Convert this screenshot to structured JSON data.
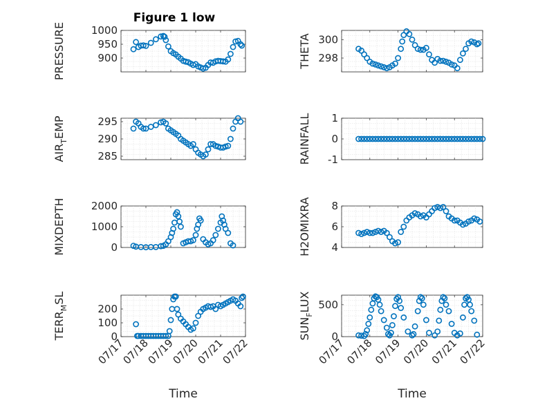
{
  "figure": {
    "title": "Figure 1 low",
    "marker_color": "#0072BD"
  },
  "chart_data": [
    {
      "type": "scatter",
      "ylabel": "PRESSURE",
      "xlabel": "",
      "title": "Figure 1 low",
      "xlim": [
        17,
        22
      ],
      "ylim": [
        850,
        1000
      ],
      "yticks": [
        900,
        950,
        1000
      ],
      "ytick_labels": [
        "900",
        "950",
        "1000"
      ],
      "x": [
        17.5,
        17.6,
        17.7,
        17.8,
        17.9,
        18.0,
        18.2,
        18.4,
        18.6,
        18.7,
        18.75,
        18.8,
        18.9,
        19.0,
        19.1,
        19.2,
        19.3,
        19.4,
        19.5,
        19.6,
        19.7,
        19.8,
        19.9,
        20.0,
        20.1,
        20.2,
        20.3,
        20.4,
        20.5,
        20.6,
        20.7,
        20.8,
        20.9,
        21.0,
        21.1,
        21.2,
        21.3,
        21.4,
        21.5,
        21.6,
        21.7,
        21.8,
        21.85
      ],
      "y": [
        932,
        958,
        940,
        945,
        946,
        944,
        955,
        968,
        978,
        980,
        977,
        965,
        942,
        925,
        918,
        913,
        905,
        898,
        890,
        887,
        885,
        880,
        875,
        878,
        870,
        866,
        862,
        865,
        875,
        884,
        883,
        888,
        890,
        889,
        888,
        887,
        895,
        915,
        940,
        960,
        962,
        950,
        945
      ]
    },
    {
      "type": "scatter",
      "ylabel": "THETA",
      "xlabel": "",
      "xlim": [
        17,
        22
      ],
      "ylim": [
        296.5,
        301
      ],
      "yticks": [
        298,
        300
      ],
      "ytick_labels": [
        "298",
        "300"
      ],
      "x": [
        17.6,
        17.7,
        17.8,
        17.9,
        18.0,
        18.1,
        18.2,
        18.3,
        18.4,
        18.5,
        18.6,
        18.7,
        18.8,
        18.9,
        19.0,
        19.1,
        19.15,
        19.2,
        19.3,
        19.4,
        19.5,
        19.6,
        19.7,
        19.8,
        19.9,
        20.0,
        20.1,
        20.2,
        20.3,
        20.4,
        20.5,
        20.6,
        20.7,
        20.8,
        20.9,
        21.0,
        21.1,
        21.2,
        21.3,
        21.4,
        21.5,
        21.6,
        21.7,
        21.8,
        21.85
      ],
      "y": [
        299.0,
        298.8,
        298.4,
        298.0,
        297.6,
        297.4,
        297.3,
        297.2,
        297.1,
        297.0,
        296.9,
        297.0,
        297.2,
        297.4,
        298.0,
        299.0,
        299.8,
        300.5,
        300.9,
        300.6,
        300.0,
        299.4,
        299.0,
        298.9,
        298.9,
        299.1,
        298.4,
        297.8,
        297.5,
        297.9,
        297.7,
        297.7,
        297.6,
        297.5,
        297.3,
        297.2,
        296.9,
        297.8,
        298.5,
        299.0,
        299.6,
        299.8,
        299.7,
        299.5,
        299.6
      ]
    },
    {
      "type": "scatter",
      "ylabel": "AIR_TEMP",
      "ylabel_main": "AIR",
      "ylabel_sub": "T",
      "ylabel_rest": "EMP",
      "xlabel": "",
      "xlim": [
        17,
        22
      ],
      "ylim": [
        284,
        296
      ],
      "yticks": [
        285,
        290,
        295
      ],
      "ytick_labels": [
        "285",
        "290",
        "295"
      ],
      "x": [
        17.5,
        17.6,
        17.7,
        17.8,
        17.9,
        18.0,
        18.2,
        18.4,
        18.6,
        18.7,
        18.8,
        18.9,
        19.0,
        19.1,
        19.2,
        19.3,
        19.4,
        19.5,
        19.6,
        19.7,
        19.8,
        19.9,
        20.0,
        20.1,
        20.2,
        20.3,
        20.4,
        20.5,
        20.6,
        20.7,
        20.8,
        20.9,
        21.0,
        21.1,
        21.2,
        21.3,
        21.4,
        21.5,
        21.6,
        21.7,
        21.8
      ],
      "y": [
        293,
        295,
        294.5,
        293.5,
        293,
        293,
        293.5,
        294,
        294.8,
        295,
        294.5,
        293,
        292.5,
        292,
        291.5,
        291,
        290,
        289.5,
        289,
        288.5,
        288,
        288.5,
        287,
        286,
        285.5,
        285,
        285.5,
        287,
        288.5,
        288.5,
        288,
        287.8,
        287.5,
        287.5,
        287.8,
        288,
        290,
        293,
        295,
        296,
        295
      ]
    },
    {
      "type": "scatter",
      "ylabel": "RAINFALL",
      "xlabel": "",
      "xlim": [
        17,
        22
      ],
      "ylim": [
        -1,
        1
      ],
      "yticks": [
        -1,
        0,
        1
      ],
      "ytick_labels": [
        "-1",
        "0",
        "1"
      ],
      "x": [
        17.6,
        17.7,
        17.8,
        17.9,
        18.0,
        18.1,
        18.2,
        18.3,
        18.4,
        18.5,
        18.6,
        18.7,
        18.8,
        18.9,
        19.0,
        19.1,
        19.2,
        19.3,
        19.4,
        19.5,
        19.6,
        19.7,
        19.8,
        19.9,
        20.0,
        20.1,
        20.2,
        20.3,
        20.4,
        20.5,
        20.6,
        20.7,
        20.8,
        20.9,
        21.0,
        21.1,
        21.2,
        21.3,
        21.4,
        21.5,
        21.6,
        21.7,
        21.8,
        21.9,
        22.0
      ],
      "y": [
        0,
        0,
        0,
        0,
        0,
        0,
        0,
        0,
        0,
        0,
        0,
        0,
        0,
        0,
        0,
        0,
        0,
        0,
        0,
        0,
        0,
        0,
        0,
        0,
        0,
        0,
        0,
        0,
        0,
        0,
        0,
        0,
        0,
        0,
        0,
        0,
        0,
        0,
        0,
        0,
        0,
        0,
        0,
        0,
        0
      ]
    },
    {
      "type": "scatter",
      "ylabel": "MIXDEPTH",
      "xlabel": "",
      "xlim": [
        17,
        22
      ],
      "ylim": [
        0,
        2000
      ],
      "yticks": [
        0,
        1000,
        2000
      ],
      "ytick_labels": [
        "0",
        "1000",
        "2000"
      ],
      "x": [
        17.5,
        17.6,
        17.8,
        18.0,
        18.2,
        18.4,
        18.6,
        18.7,
        18.8,
        18.9,
        19.0,
        19.05,
        19.1,
        19.15,
        19.2,
        19.25,
        19.3,
        19.35,
        19.4,
        19.5,
        19.6,
        19.7,
        19.8,
        19.9,
        20.0,
        20.05,
        20.1,
        20.15,
        20.2,
        20.3,
        20.4,
        20.5,
        20.6,
        20.7,
        20.8,
        20.9,
        21.0,
        21.05,
        21.1,
        21.15,
        21.2,
        21.3,
        21.4,
        21.5
      ],
      "y": [
        80,
        40,
        20,
        10,
        20,
        20,
        60,
        80,
        150,
        300,
        500,
        700,
        900,
        1200,
        1600,
        1700,
        1500,
        1250,
        1000,
        200,
        250,
        300,
        300,
        350,
        600,
        900,
        1100,
        1400,
        1300,
        400,
        250,
        150,
        200,
        350,
        600,
        900,
        1200,
        1500,
        1300,
        1100,
        900,
        700,
        200,
        100
      ]
    },
    {
      "type": "scatter",
      "ylabel": "H2OMIXRA",
      "xlabel": "",
      "xlim": [
        17,
        22
      ],
      "ylim": [
        4,
        8
      ],
      "yticks": [
        4,
        6,
        8
      ],
      "ytick_labels": [
        "4",
        "6",
        "8"
      ],
      "x": [
        17.6,
        17.7,
        17.8,
        17.9,
        18.0,
        18.1,
        18.2,
        18.3,
        18.4,
        18.5,
        18.6,
        18.7,
        18.8,
        18.9,
        19.0,
        19.1,
        19.2,
        19.3,
        19.4,
        19.5,
        19.6,
        19.7,
        19.8,
        19.9,
        20.0,
        20.1,
        20.2,
        20.3,
        20.4,
        20.5,
        20.6,
        20.7,
        20.8,
        20.9,
        21.0,
        21.1,
        21.2,
        21.3,
        21.4,
        21.5,
        21.6,
        21.7,
        21.8,
        21.9
      ],
      "y": [
        5.4,
        5.3,
        5.4,
        5.5,
        5.4,
        5.4,
        5.5,
        5.6,
        5.5,
        5.6,
        5.4,
        5.0,
        4.6,
        4.4,
        4.5,
        5.5,
        6.0,
        6.6,
        6.9,
        7.1,
        7.3,
        7.2,
        7.0,
        7.1,
        6.9,
        7.2,
        7.5,
        7.8,
        7.9,
        7.8,
        7.9,
        7.5,
        7.0,
        6.8,
        6.6,
        6.6,
        6.4,
        6.2,
        6.3,
        6.5,
        6.6,
        6.8,
        6.7,
        6.5
      ]
    },
    {
      "type": "scatter",
      "ylabel": "TERR_MSL",
      "ylabel_main": "TERR",
      "ylabel_sub": "M",
      "ylabel_rest": "SL",
      "xlabel": "Time",
      "xlim": [
        17,
        22
      ],
      "ylim": [
        0,
        300
      ],
      "yticks": [
        0,
        100,
        200
      ],
      "ytick_labels": [
        "0",
        "100",
        "200"
      ],
      "xticks": [
        17,
        18,
        19,
        20,
        21,
        22
      ],
      "xtick_labels": [
        "07/17",
        "07/18",
        "07/19",
        "07/20",
        "07/21",
        "07/22"
      ],
      "x": [
        17.6,
        17.65,
        17.7,
        17.8,
        17.9,
        18.0,
        18.1,
        18.2,
        18.3,
        18.4,
        18.5,
        18.6,
        18.7,
        18.8,
        18.9,
        18.95,
        19.0,
        19.05,
        19.1,
        19.15,
        19.2,
        19.25,
        19.3,
        19.4,
        19.5,
        19.6,
        19.7,
        19.8,
        19.9,
        20.0,
        20.1,
        20.2,
        20.3,
        20.4,
        20.5,
        20.6,
        20.7,
        20.8,
        20.9,
        21.0,
        21.1,
        21.2,
        21.3,
        21.4,
        21.5,
        21.6,
        21.7,
        21.8,
        21.85,
        21.9
      ],
      "y": [
        90,
        5,
        5,
        5,
        5,
        5,
        5,
        5,
        5,
        5,
        5,
        5,
        5,
        5,
        5,
        40,
        120,
        200,
        270,
        290,
        290,
        200,
        160,
        130,
        110,
        90,
        70,
        50,
        60,
        100,
        150,
        180,
        200,
        210,
        220,
        215,
        220,
        200,
        230,
        220,
        230,
        240,
        250,
        260,
        270,
        260,
        240,
        220,
        280,
        290
      ]
    },
    {
      "type": "scatter",
      "ylabel": "SUN_FLUX",
      "ylabel_main": "SUN",
      "ylabel_sub": "F",
      "ylabel_rest": "LUX",
      "xlabel": "Time",
      "xlim": [
        17,
        22
      ],
      "ylim": [
        0,
        650
      ],
      "yticks": [
        0,
        500
      ],
      "ytick_labels": [
        "0",
        "500"
      ],
      "xticks": [
        17,
        18,
        19,
        20,
        21,
        22
      ],
      "xtick_labels": [
        "07/17",
        "07/18",
        "07/19",
        "07/20",
        "07/21",
        "07/22"
      ],
      "x": [
        17.6,
        17.7,
        17.8,
        17.85,
        17.9,
        17.95,
        18.0,
        18.05,
        18.1,
        18.15,
        18.2,
        18.25,
        18.3,
        18.35,
        18.4,
        18.5,
        18.6,
        18.65,
        18.7,
        18.75,
        18.8,
        18.85,
        18.9,
        18.95,
        19.0,
        19.05,
        19.1,
        19.2,
        19.35,
        19.5,
        19.55,
        19.6,
        19.7,
        19.75,
        19.8,
        19.85,
        19.9,
        20.0,
        20.1,
        20.3,
        20.4,
        20.45,
        20.5,
        20.55,
        20.6,
        20.65,
        20.7,
        20.8,
        20.9,
        21.0,
        21.1,
        21.2,
        21.3,
        21.35,
        21.4,
        21.45,
        21.5,
        21.55,
        21.6,
        21.7,
        21.8
      ],
      "y": [
        20,
        15,
        10,
        40,
        100,
        200,
        300,
        420,
        520,
        600,
        630,
        620,
        580,
        500,
        400,
        260,
        140,
        40,
        20,
        60,
        180,
        320,
        480,
        590,
        620,
        560,
        450,
        300,
        80,
        20,
        40,
        160,
        400,
        560,
        620,
        600,
        500,
        260,
        60,
        20,
        80,
        250,
        420,
        560,
        620,
        600,
        500,
        400,
        200,
        60,
        20,
        50,
        300,
        500,
        600,
        620,
        580,
        500,
        400,
        250,
        30
      ]
    }
  ]
}
